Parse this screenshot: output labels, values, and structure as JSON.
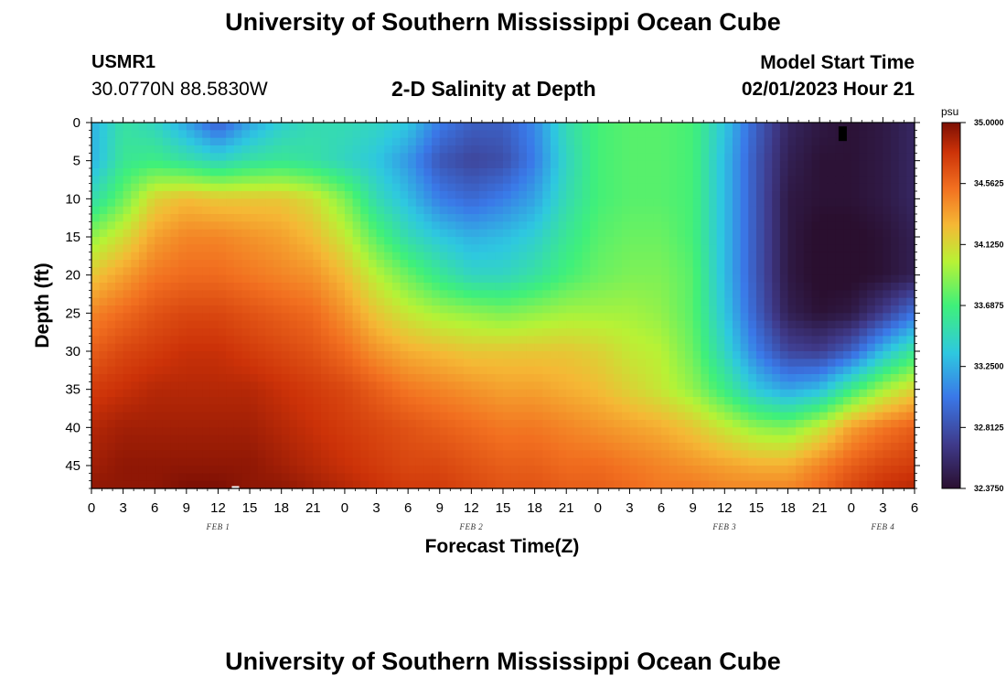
{
  "header": {
    "title": "University of Southern Mississippi Ocean Cube",
    "station_id": "USMR1",
    "coordinates": "30.0770N  88.5830W",
    "subtitle": "2-D Salinity at Depth",
    "model_start_label": "Model Start Time",
    "model_start_value": "02/01/2023 Hour 21"
  },
  "footer": {
    "title": "University of Southern Mississippi Ocean Cube"
  },
  "chart_data": {
    "type": "heatmap",
    "title": "2-D Salinity at Depth",
    "xlabel": "Forecast Time(Z)",
    "ylabel": "Depth (ft)",
    "x_range_hours_from_feb1_00z": [
      0,
      78
    ],
    "y_range_ft": [
      0,
      48
    ],
    "y_ticks": [
      "0",
      "5",
      "10",
      "15",
      "20",
      "25",
      "30",
      "35",
      "40",
      "45"
    ],
    "x_ticks": [
      "0",
      "3",
      "6",
      "9",
      "12",
      "15",
      "18",
      "21",
      "0",
      "3",
      "6",
      "9",
      "12",
      "15",
      "18",
      "21",
      "0",
      "3",
      "6",
      "9",
      "12",
      "15",
      "18",
      "21",
      "0",
      "3",
      "6"
    ],
    "day_labels": [
      {
        "label": "FEB 1",
        "hour": 12
      },
      {
        "label": "FEB 2",
        "hour": 36
      },
      {
        "label": "FEB 3",
        "hour": 60
      },
      {
        "label": "FEB 4",
        "hour": 75
      }
    ],
    "colorbar": {
      "unit": "psu",
      "min": 32.375,
      "max": 35.0,
      "ticks": [
        "35.0000",
        "34.5625",
        "34.1250",
        "33.6875",
        "33.2500",
        "32.8125",
        "32.3750"
      ]
    },
    "salinity_grid": {
      "x_hours": [
        0,
        3,
        6,
        9,
        12,
        15,
        18,
        21,
        24,
        27,
        30,
        33,
        36,
        39,
        42,
        45,
        48,
        51,
        54,
        57,
        60,
        63,
        66,
        69,
        72,
        75,
        78
      ],
      "depth_ft": [
        0,
        5,
        10,
        15,
        20,
        25,
        30,
        35,
        40,
        45,
        48
      ],
      "values": [
        [
          33.25,
          33.55,
          33.45,
          33.2,
          32.9,
          33.2,
          33.4,
          33.5,
          33.5,
          33.45,
          33.35,
          33.05,
          32.9,
          32.9,
          33.1,
          33.5,
          33.7,
          33.75,
          33.75,
          33.7,
          33.35,
          32.9,
          32.55,
          32.45,
          32.4,
          32.45,
          32.55
        ],
        [
          33.25,
          33.6,
          33.65,
          33.55,
          33.45,
          33.55,
          33.6,
          33.55,
          33.45,
          33.35,
          33.15,
          32.85,
          32.75,
          32.8,
          33.05,
          33.45,
          33.7,
          33.75,
          33.75,
          33.7,
          33.3,
          32.85,
          32.5,
          32.4,
          32.4,
          32.45,
          32.55
        ],
        [
          33.5,
          33.8,
          34.15,
          34.25,
          34.2,
          34.2,
          34.2,
          34.1,
          33.85,
          33.5,
          33.3,
          33.05,
          32.95,
          33.05,
          33.2,
          33.5,
          33.7,
          33.75,
          33.75,
          33.7,
          33.3,
          32.85,
          32.45,
          32.4,
          32.4,
          32.45,
          32.55
        ],
        [
          33.9,
          34.1,
          34.35,
          34.45,
          34.45,
          34.4,
          34.35,
          34.25,
          34.05,
          33.75,
          33.5,
          33.35,
          33.25,
          33.3,
          33.4,
          33.6,
          33.75,
          33.8,
          33.8,
          33.7,
          33.3,
          32.85,
          32.45,
          32.35,
          32.35,
          32.4,
          32.5
        ],
        [
          34.2,
          34.35,
          34.5,
          34.55,
          34.55,
          34.5,
          34.45,
          34.4,
          34.25,
          34.0,
          33.8,
          33.6,
          33.45,
          33.45,
          33.55,
          33.7,
          33.8,
          33.85,
          33.85,
          33.75,
          33.3,
          32.85,
          32.45,
          32.35,
          32.35,
          32.4,
          32.5
        ],
        [
          34.45,
          34.55,
          34.65,
          34.7,
          34.7,
          34.65,
          34.6,
          34.55,
          34.4,
          34.2,
          34.05,
          33.95,
          33.9,
          33.85,
          33.9,
          33.95,
          33.95,
          33.95,
          33.9,
          33.75,
          33.35,
          32.9,
          32.5,
          32.4,
          32.45,
          32.7,
          33.0
        ],
        [
          34.6,
          34.7,
          34.75,
          34.8,
          34.8,
          34.75,
          34.7,
          34.65,
          34.55,
          34.4,
          34.3,
          34.25,
          34.2,
          34.2,
          34.2,
          34.2,
          34.15,
          34.05,
          34.0,
          33.8,
          33.45,
          33.05,
          32.75,
          32.7,
          32.9,
          33.3,
          33.6
        ],
        [
          34.75,
          34.8,
          34.85,
          34.85,
          34.85,
          34.85,
          34.8,
          34.75,
          34.7,
          34.6,
          34.5,
          34.45,
          34.4,
          34.35,
          34.35,
          34.3,
          34.25,
          34.15,
          34.05,
          33.9,
          33.65,
          33.35,
          33.2,
          33.3,
          33.65,
          33.95,
          34.15
        ],
        [
          34.85,
          34.9,
          34.9,
          34.9,
          34.9,
          34.9,
          34.85,
          34.8,
          34.75,
          34.7,
          34.65,
          34.6,
          34.55,
          34.5,
          34.5,
          34.45,
          34.4,
          34.35,
          34.3,
          34.2,
          34.05,
          33.9,
          33.85,
          34.05,
          34.35,
          34.5,
          34.6
        ],
        [
          34.9,
          34.95,
          34.95,
          34.95,
          34.95,
          34.95,
          34.9,
          34.85,
          34.8,
          34.75,
          34.7,
          34.7,
          34.65,
          34.6,
          34.6,
          34.55,
          34.55,
          34.5,
          34.45,
          34.4,
          34.35,
          34.3,
          34.3,
          34.45,
          34.6,
          34.7,
          34.75
        ],
        [
          34.95,
          34.95,
          34.95,
          35.0,
          35.0,
          34.95,
          34.95,
          34.9,
          34.85,
          34.8,
          34.75,
          34.75,
          34.7,
          34.65,
          34.65,
          34.6,
          34.6,
          34.55,
          34.5,
          34.5,
          34.45,
          34.45,
          34.45,
          34.55,
          34.7,
          34.8,
          34.85
        ]
      ]
    }
  }
}
